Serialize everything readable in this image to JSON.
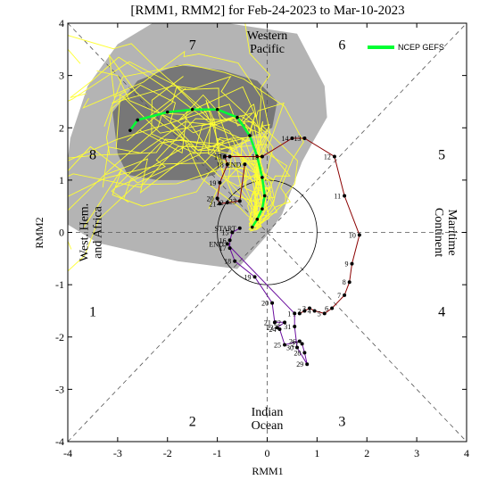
{
  "chart_data": {
    "type": "scatter",
    "title": "[RMM1, RMM2] for Feb-24-2023 to Mar-10-2023",
    "xlabel": "RMM1",
    "ylabel": "RMM2",
    "xlim": [
      -4,
      4
    ],
    "ylim": [
      -4,
      4
    ],
    "xticks": [
      "-4",
      "-3",
      "-2",
      "-1",
      "0",
      "1",
      "2",
      "3",
      "4"
    ],
    "yticks": [
      "-4",
      "-3",
      "-2",
      "-1",
      "0",
      "1",
      "2",
      "3",
      "4"
    ],
    "phases": [
      {
        "label": "1",
        "x": -3.5,
        "y": -1.5
      },
      {
        "label": "2",
        "x": -1.5,
        "y": -3.6
      },
      {
        "label": "3",
        "x": 1.5,
        "y": -3.6
      },
      {
        "label": "4",
        "x": 3.5,
        "y": -1.5
      },
      {
        "label": "5",
        "x": 3.5,
        "y": 1.5
      },
      {
        "label": "6",
        "x": 1.5,
        "y": 3.6
      },
      {
        "label": "7",
        "x": -1.5,
        "y": 3.6
      },
      {
        "label": "8",
        "x": -3.5,
        "y": 1.5
      }
    ],
    "regions": [
      {
        "lines": [
          "Western",
          "Pacific"
        ],
        "x": 0,
        "y": 3.65,
        "rotate": 0
      },
      {
        "lines": [
          "Indian",
          "Ocean"
        ],
        "x": 0,
        "y": -3.55,
        "rotate": 0
      },
      {
        "lines": [
          "West. Hem.",
          "and Africa"
        ],
        "x": -3.55,
        "y": 0,
        "rotate": -90
      },
      {
        "lines": [
          "Maritime",
          "Continent"
        ],
        "x": 3.6,
        "y": 0,
        "rotate": 90
      }
    ],
    "legend": {
      "label": "NCEP GEFS",
      "color": "#00ff33",
      "position": "top-right"
    },
    "observed_series": [
      {
        "name": "observed-earlier",
        "color": "#8b0000",
        "points": [
          {
            "day": "1",
            "x": 0.65,
            "y": -1.55
          },
          {
            "day": "2",
            "x": 0.75,
            "y": -1.5
          },
          {
            "day": "3",
            "x": 0.85,
            "y": -1.45
          },
          {
            "day": "4",
            "x": 0.95,
            "y": -1.5
          },
          {
            "day": "5",
            "x": 1.15,
            "y": -1.55
          },
          {
            "day": "6",
            "x": 1.3,
            "y": -1.45
          },
          {
            "day": "7",
            "x": 1.55,
            "y": -1.2
          },
          {
            "day": "8",
            "x": 1.65,
            "y": -0.95
          },
          {
            "day": "9",
            "x": 1.7,
            "y": -0.6
          },
          {
            "day": "10",
            "x": 1.85,
            "y": -0.05
          },
          {
            "day": "11",
            "x": 1.55,
            "y": 0.7
          },
          {
            "day": "12",
            "x": 1.35,
            "y": 1.45
          },
          {
            "day": "13",
            "x": 0.75,
            "y": 1.8
          },
          {
            "day": "14",
            "x": 0.5,
            "y": 1.8
          },
          {
            "day": "15",
            "x": -0.1,
            "y": 1.45
          },
          {
            "day": "16",
            "x": -0.75,
            "y": 1.45
          },
          {
            "day": "17",
            "x": -0.85,
            "y": 1.45
          },
          {
            "day": "18",
            "x": -0.8,
            "y": 1.3
          },
          {
            "day": "19",
            "x": -0.95,
            "y": 0.95
          },
          {
            "day": "20",
            "x": -1.0,
            "y": 0.65
          },
          {
            "day": "21",
            "x": -0.95,
            "y": 0.55
          },
          {
            "day": "22",
            "x": -0.8,
            "y": 0.57
          },
          {
            "day": "23",
            "x": -0.55,
            "y": 0.6
          },
          {
            "day": "END",
            "x": -0.45,
            "y": 1.3
          }
        ]
      },
      {
        "name": "observed-recent",
        "color": "#6a0d9e",
        "points": [
          {
            "day": "START",
            "x": -0.55,
            "y": 0.08
          },
          {
            "day": "15",
            "x": -0.7,
            "y": 0.0
          },
          {
            "day": "16",
            "x": -0.75,
            "y": -0.15
          },
          {
            "day": "17",
            "x": -0.75,
            "y": -0.3
          },
          {
            "day": "18",
            "x": -0.65,
            "y": -0.55
          },
          {
            "day": "19",
            "x": -0.25,
            "y": -0.85
          },
          {
            "day": "20",
            "x": 0.1,
            "y": -1.35
          },
          {
            "day": "21",
            "x": 0.15,
            "y": -1.72
          },
          {
            "day": "22",
            "x": 0.35,
            "y": -1.72
          },
          {
            "day": "23",
            "x": 0.2,
            "y": -1.82
          },
          {
            "day": "24",
            "x": 0.25,
            "y": -1.85
          },
          {
            "day": "25",
            "x": 0.35,
            "y": -2.15
          },
          {
            "day": "26",
            "x": 0.65,
            "y": -2.08
          },
          {
            "day": "27",
            "x": 0.7,
            "y": -2.13
          },
          {
            "day": "28",
            "x": 0.75,
            "y": -2.3
          },
          {
            "day": "29",
            "x": 0.8,
            "y": -2.52
          },
          {
            "day": "30",
            "x": 0.6,
            "y": -2.2
          },
          {
            "day": "31",
            "x": 0.55,
            "y": -1.8
          },
          {
            "day": "1",
            "x": 0.55,
            "y": -1.55
          },
          {
            "day": "END",
            "x": -0.8,
            "y": -0.22
          }
        ]
      }
    ],
    "gefs_mean": {
      "name": "NCEP GEFS",
      "color": "#00ff33",
      "points": [
        {
          "x": -0.3,
          "y": 0.1
        },
        {
          "x": -0.2,
          "y": 0.25
        },
        {
          "x": -0.1,
          "y": 0.45
        },
        {
          "x": -0.05,
          "y": 0.7
        },
        {
          "x": -0.1,
          "y": 1.05
        },
        {
          "x": -0.2,
          "y": 1.45
        },
        {
          "x": -0.35,
          "y": 1.85
        },
        {
          "x": -0.6,
          "y": 2.2
        },
        {
          "x": -1.0,
          "y": 2.35
        },
        {
          "x": -1.5,
          "y": 2.35
        },
        {
          "x": -2.0,
          "y": 2.3
        },
        {
          "x": -2.6,
          "y": 2.15
        },
        {
          "x": -2.75,
          "y": 1.95
        }
      ]
    },
    "plume_outer": [
      {
        "x": -4.0,
        "y": 0.15
      },
      {
        "x": -4.05,
        "y": 1.0
      },
      {
        "x": -3.95,
        "y": 1.8
      },
      {
        "x": -3.6,
        "y": 2.8
      },
      {
        "x": -3.0,
        "y": 3.6
      },
      {
        "x": -2.3,
        "y": 4.0
      },
      {
        "x": -0.8,
        "y": 4.0
      },
      {
        "x": 0.6,
        "y": 3.8
      },
      {
        "x": 1.15,
        "y": 2.8
      },
      {
        "x": 1.2,
        "y": 2.2
      },
      {
        "x": 0.9,
        "y": 1.7
      },
      {
        "x": 0.7,
        "y": 1.35
      },
      {
        "x": 0.3,
        "y": 0.35
      },
      {
        "x": 0.05,
        "y": 0.0
      },
      {
        "x": -0.6,
        "y": -0.7
      },
      {
        "x": -1.8,
        "y": -0.55
      },
      {
        "x": -3.4,
        "y": -0.2
      }
    ],
    "plume_inner": [
      {
        "x": -3.0,
        "y": 1.5
      },
      {
        "x": -3.1,
        "y": 2.3
      },
      {
        "x": -2.6,
        "y": 2.9
      },
      {
        "x": -1.8,
        "y": 3.2
      },
      {
        "x": -0.9,
        "y": 3.1
      },
      {
        "x": -0.2,
        "y": 2.9
      },
      {
        "x": 0.2,
        "y": 2.5
      },
      {
        "x": 0.1,
        "y": 2.0
      },
      {
        "x": -0.4,
        "y": 1.8
      },
      {
        "x": -0.75,
        "y": 1.6
      },
      {
        "x": -1.05,
        "y": 1.1
      },
      {
        "x": -1.5,
        "y": 1.0
      },
      {
        "x": -2.2,
        "y": 1.0
      },
      {
        "x": -2.8,
        "y": 1.1
      }
    ]
  }
}
